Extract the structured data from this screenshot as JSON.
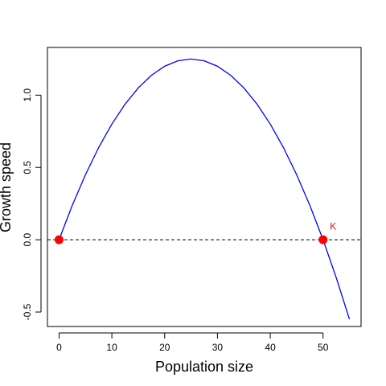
{
  "chart_data": {
    "type": "line",
    "title": "",
    "xlabel": "Population size",
    "ylabel": "Growth speed",
    "xlim": [
      -2.2,
      57.2
    ],
    "ylim": [
      -0.6,
      1.33
    ],
    "xticks": [
      0,
      10,
      20,
      30,
      40,
      50
    ],
    "yticks": [
      -0.5,
      0.0,
      0.5,
      1.0
    ],
    "ytick_labels": [
      "-0.5",
      "0.0",
      "0.5",
      "1.0"
    ],
    "grid": false,
    "series": [
      {
        "color": "#0000ff",
        "x": [
          0,
          2.5,
          5,
          7.5,
          10,
          12.5,
          15,
          17.5,
          20,
          22.5,
          25,
          27.5,
          30,
          32.5,
          35,
          37.5,
          40,
          42.5,
          45,
          47.5,
          50,
          52.5,
          55
        ],
        "y": [
          0,
          0.2375,
          0.45,
          0.6375,
          0.8,
          0.9375,
          1.05,
          1.1375,
          1.2,
          1.2375,
          1.25,
          1.2375,
          1.2,
          1.1375,
          1.05,
          0.9375,
          0.8,
          0.6375,
          0.45,
          0.2375,
          0,
          -0.2625,
          -0.55
        ]
      }
    ],
    "reference_line": {
      "y": 0,
      "style": "dashed",
      "color": "#000000"
    },
    "points": [
      {
        "x": 0,
        "y": 0,
        "color": "#ff0000"
      },
      {
        "x": 50,
        "y": 0,
        "color": "#ff0000"
      }
    ],
    "annotations": [
      {
        "text": "K",
        "x": 51.3,
        "y": 0.07,
        "color": "#ff0000"
      }
    ]
  }
}
